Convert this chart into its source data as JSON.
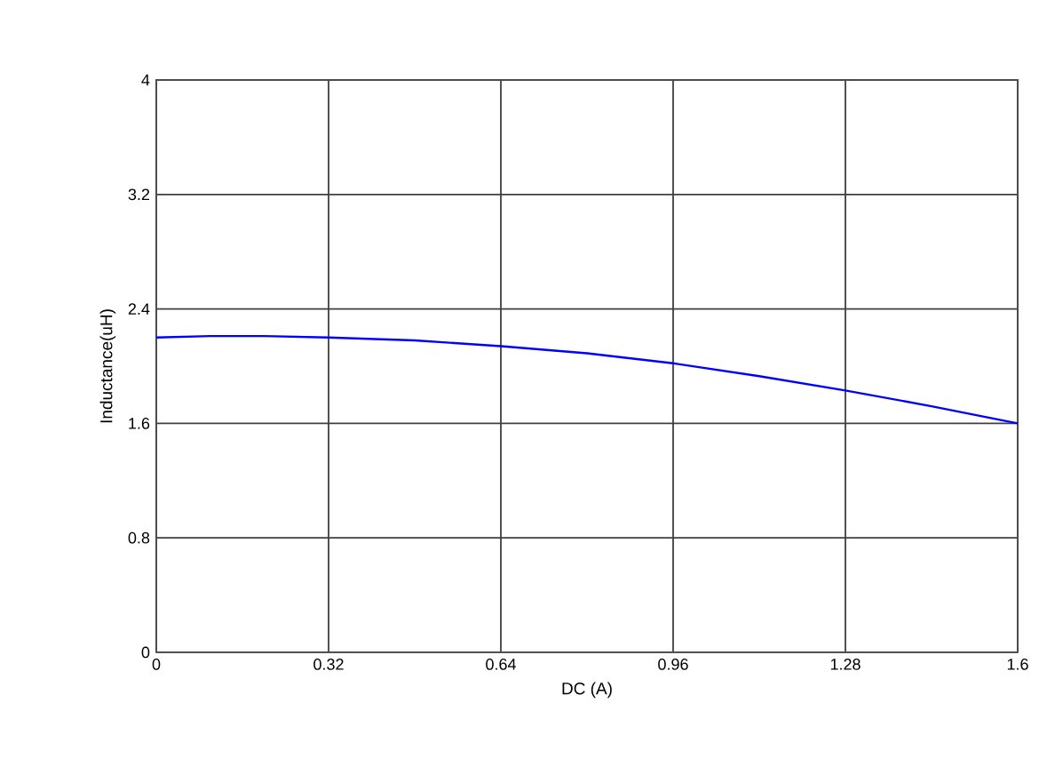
{
  "chart_data": {
    "type": "line",
    "xlabel": "DC (A)",
    "ylabel": "Inductance(uH)",
    "xlim": [
      0,
      1.6
    ],
    "ylim": [
      0,
      4
    ],
    "xticks": [
      0,
      0.32,
      0.64,
      0.96,
      1.28,
      1.6
    ],
    "yticks": [
      0,
      0.8,
      1.6,
      2.4,
      3.2,
      4
    ],
    "grid": true,
    "series": [
      {
        "color": "#0000ff",
        "x": [
          0,
          0.1,
          0.2,
          0.32,
          0.48,
          0.64,
          0.8,
          0.96,
          1.12,
          1.28,
          1.44,
          1.6
        ],
        "values": [
          2.2,
          2.21,
          2.21,
          2.2,
          2.18,
          2.14,
          2.09,
          2.02,
          1.93,
          1.83,
          1.72,
          1.6
        ]
      }
    ]
  }
}
